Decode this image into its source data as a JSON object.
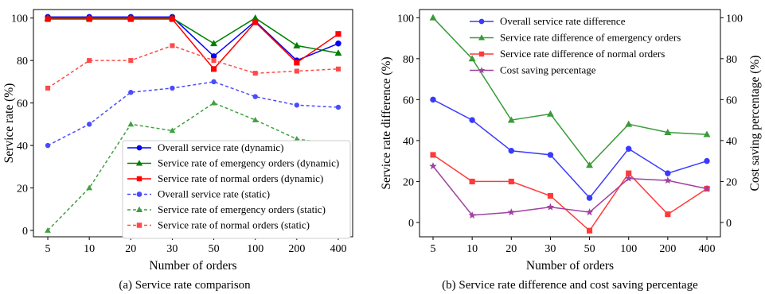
{
  "figure": {
    "caption_a": "(a) Service rate comparison",
    "caption_b": "(b) Service rate difference and cost saving percentage"
  },
  "chart_data": [
    {
      "type": "line",
      "xlabel": "Number of orders",
      "ylabel": "Service rate (%)",
      "categories": [
        "5",
        "10",
        "20",
        "30",
        "50",
        "100",
        "200",
        "400"
      ],
      "ylim": [
        -3,
        104
      ],
      "yticks": [
        0,
        20,
        40,
        60,
        80,
        100
      ],
      "legend_position": "lower right",
      "series": [
        {
          "name": "Overall service rate (dynamic)",
          "values": [
            100.5,
            100.5,
            100.5,
            100.5,
            82,
            98.5,
            80,
            88
          ],
          "color": "#0000ff",
          "marker": "circle",
          "dashed": false
        },
        {
          "name": "Service rate of emergency orders (dynamic)",
          "values": [
            100,
            100,
            100,
            100,
            88,
            100,
            87,
            83.5
          ],
          "color": "#008000",
          "marker": "triangle",
          "dashed": false
        },
        {
          "name": "Service rate of normal orders (dynamic)",
          "values": [
            99.5,
            99.5,
            99.5,
            99.5,
            76,
            98,
            79,
            92.5
          ],
          "color": "#ff0000",
          "marker": "square",
          "dashed": false
        },
        {
          "name": "Overall service rate (static)",
          "values": [
            40,
            50,
            65,
            67,
            70,
            63,
            59,
            58
          ],
          "color": "#4a4aff",
          "marker": "circle",
          "dashed": true
        },
        {
          "name": "Service rate of emergency orders (static)",
          "values": [
            0,
            20,
            50,
            47,
            60,
            52,
            43,
            40.5
          ],
          "color": "#40a040",
          "marker": "triangle",
          "dashed": true
        },
        {
          "name": "Service rate of normal orders (static)",
          "values": [
            67,
            80,
            80,
            87,
            80,
            74,
            75,
            76
          ],
          "color": "#ff4a4a",
          "marker": "square",
          "dashed": true
        }
      ]
    },
    {
      "type": "line",
      "xlabel": "Number of orders",
      "ylabel": "Service rate difference (%)",
      "ylabel_right": "Cost saving percentage (%)",
      "categories": [
        "5",
        "10",
        "20",
        "30",
        "50",
        "100",
        "200",
        "400"
      ],
      "ylim": [
        -7,
        104
      ],
      "yticks": [
        0,
        20,
        40,
        60,
        80,
        100
      ],
      "ylim_right": [
        -7,
        104
      ],
      "yticks_right": [
        0,
        20,
        40,
        60,
        80,
        100
      ],
      "legend_position": "upper center",
      "series": [
        {
          "name": "Overall service rate difference",
          "values": [
            60,
            50,
            35,
            33,
            12,
            36,
            24,
            30
          ],
          "color": "#3a3aff",
          "marker": "circle",
          "axis": "left"
        },
        {
          "name": "Service rate difference of emergency orders",
          "values": [
            100,
            80,
            50,
            53,
            28,
            48,
            44,
            43
          ],
          "color": "#3a9a3a",
          "marker": "triangle",
          "axis": "left"
        },
        {
          "name": "Service rate difference of normal orders",
          "values": [
            33,
            20,
            20,
            13,
            -4,
            24,
            4,
            16.5
          ],
          "color": "#ff3a3a",
          "marker": "square",
          "axis": "left"
        },
        {
          "name": "Cost saving percentage",
          "values": [
            27.5,
            3.5,
            5,
            7.5,
            5,
            21.5,
            20.5,
            16.5
          ],
          "color": "#a040a0",
          "marker": "star",
          "axis": "right"
        }
      ]
    }
  ]
}
